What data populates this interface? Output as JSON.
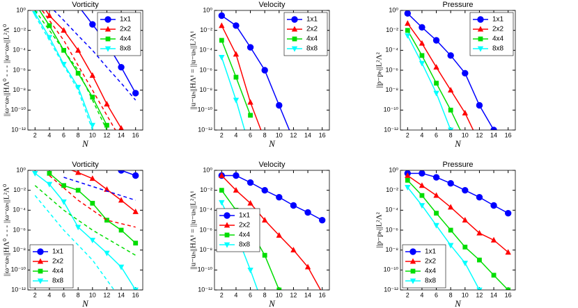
{
  "chart_data": [
    {
      "type": "line",
      "title": "Vorticity",
      "xlabel": "N",
      "ylabel": "||ω−ωₕ||HΛ⁰   - - -   ||ω−ωₕ||L²Λ⁰",
      "log_y": true,
      "legend": "upper right",
      "xlim": [
        1,
        17
      ],
      "xticks": [
        2,
        4,
        6,
        8,
        10,
        12,
        14,
        16
      ],
      "ylim": [
        1e-12,
        1
      ],
      "yticks": [
        {
          "value": 1e-12,
          "label": "10⁻¹²"
        },
        {
          "value": 1e-10,
          "label": "10⁻¹⁰"
        },
        {
          "value": 1e-08,
          "label": "10⁻⁸"
        },
        {
          "value": 1e-06,
          "label": "10⁻⁶"
        },
        {
          "value": 0.0001,
          "label": "10⁻⁴"
        },
        {
          "value": 0.01,
          "label": "10⁻²"
        },
        {
          "value": 1,
          "label": "10⁰"
        }
      ],
      "series": [
        {
          "name": "1x1",
          "color": "#0000ff",
          "marker": "o",
          "x": [
            8,
            10,
            12,
            14,
            16
          ],
          "values": [
            3,
            0.04,
            0.0005,
            2e-06,
            5e-09
          ]
        },
        {
          "name": "2x2",
          "color": "#ff0000",
          "marker": "^",
          "x": [
            2,
            4,
            6,
            8,
            10,
            12,
            14
          ],
          "values": [
            50,
            0.3,
            0.01,
            0.0001,
            3e-07,
            4e-10,
            1.5e-12
          ]
        },
        {
          "name": "4x4",
          "color": "#00dd00",
          "marker": "s",
          "x": [
            2,
            4,
            6,
            8,
            10,
            12
          ],
          "values": [
            5,
            0.03,
            0.0001,
            5e-07,
            2e-09,
            3e-12
          ]
        },
        {
          "name": "8x8",
          "color": "#00ffff",
          "marker": "v",
          "x": [
            2,
            4,
            6,
            8,
            10
          ],
          "values": [
            0.5,
            0.002,
            4e-06,
            2e-08,
            3e-12
          ]
        },
        {
          "color": "#0000ff",
          "dashed": true,
          "x": [
            4,
            6,
            8,
            10,
            12,
            14,
            16
          ],
          "values": [
            3,
            0.1,
            0.003,
            0.0001,
            2e-06,
            5e-08,
            1e-09
          ]
        },
        {
          "color": "#ff0000",
          "dashed": true,
          "x": [
            2,
            4,
            6,
            8,
            10,
            12,
            14
          ],
          "values": [
            10,
            0.1,
            0.001,
            3e-06,
            1e-08,
            3e-11,
            1e-13
          ]
        },
        {
          "color": "#00dd00",
          "dashed": true,
          "x": [
            2,
            4,
            6,
            8,
            10,
            12
          ],
          "values": [
            1,
            0.01,
            0.0001,
            1e-06,
            1e-09,
            1e-12
          ]
        },
        {
          "color": "#00ffff",
          "dashed": true,
          "x": [
            2,
            4,
            6,
            8,
            10
          ],
          "values": [
            0.3,
            0.001,
            3e-06,
            1e-08,
            1e-12
          ]
        }
      ]
    },
    {
      "type": "line",
      "title": "Velocity",
      "xlabel": "N",
      "ylabel": "||u−uₕ||HΛ¹ = ||u−uₕ||L²Λ¹",
      "log_y": true,
      "legend": "upper right",
      "xlim": [
        1,
        17
      ],
      "xticks": [
        2,
        4,
        6,
        8,
        10,
        12,
        14,
        16
      ],
      "ylim": [
        1e-12,
        1
      ],
      "yticks": [
        {
          "value": 1e-12,
          "label": "10⁻¹²"
        },
        {
          "value": 1e-10,
          "label": "10⁻¹⁰"
        },
        {
          "value": 1e-08,
          "label": "10⁻⁸"
        },
        {
          "value": 1e-06,
          "label": "10⁻⁶"
        },
        {
          "value": 0.0001,
          "label": "10⁻⁴"
        },
        {
          "value": 0.01,
          "label": "10⁻²"
        },
        {
          "value": 1,
          "label": "10⁰"
        }
      ],
      "series": [
        {
          "name": "1x1",
          "color": "#0000ff",
          "marker": "o",
          "x": [
            2,
            4,
            6,
            8,
            10,
            12
          ],
          "values": [
            0.3,
            0.03,
            0.0002,
            1e-06,
            3e-10,
            1e-13
          ]
        },
        {
          "name": "2x2",
          "color": "#ff0000",
          "marker": "^",
          "x": [
            2,
            4,
            6,
            8
          ],
          "values": [
            0.03,
            4e-05,
            6e-10,
            1e-13
          ]
        },
        {
          "name": "4x4",
          "color": "#00dd00",
          "marker": "s",
          "x": [
            2,
            4,
            6
          ],
          "values": [
            0.001,
            2e-07,
            3e-11
          ]
        },
        {
          "name": "8x8",
          "color": "#00ffff",
          "marker": "v",
          "x": [
            2,
            4,
            6
          ],
          "values": [
            2e-05,
            1e-09,
            1e-14
          ]
        }
      ]
    },
    {
      "type": "line",
      "title": "Pressure",
      "xlabel": "N",
      "ylabel": "||p−pₕ||L²Λ²",
      "log_y": true,
      "legend": "upper right",
      "xlim": [
        1,
        17
      ],
      "xticks": [
        2,
        4,
        6,
        8,
        10,
        12,
        14,
        16
      ],
      "ylim": [
        1e-12,
        1
      ],
      "yticks": [
        {
          "value": 1e-12,
          "label": "10⁻¹²"
        },
        {
          "value": 1e-10,
          "label": "10⁻¹⁰"
        },
        {
          "value": 1e-08,
          "label": "10⁻⁸"
        },
        {
          "value": 1e-06,
          "label": "10⁻⁶"
        },
        {
          "value": 0.0001,
          "label": "10⁻⁴"
        },
        {
          "value": 0.01,
          "label": "10⁻²"
        },
        {
          "value": 1,
          "label": "10⁰"
        }
      ],
      "series": [
        {
          "name": "1x1",
          "color": "#0000ff",
          "marker": "o",
          "x": [
            2,
            4,
            6,
            8,
            10,
            12,
            14
          ],
          "values": [
            0.5,
            0.02,
            0.001,
            3e-05,
            5e-07,
            3e-10,
            1e-12
          ]
        },
        {
          "name": "2x2",
          "color": "#ff0000",
          "marker": "^",
          "x": [
            2,
            4,
            6,
            8,
            10,
            12
          ],
          "values": [
            0.05,
            0.0005,
            2e-06,
            1e-08,
            5e-11,
            5e-14
          ]
        },
        {
          "name": "4x4",
          "color": "#00dd00",
          "marker": "s",
          "x": [
            2,
            4,
            6,
            8,
            10
          ],
          "values": [
            0.01,
            3e-05,
            5e-08,
            1e-10,
            1e-13
          ]
        },
        {
          "name": "8x8",
          "color": "#00ffff",
          "marker": "v",
          "x": [
            2,
            4,
            6,
            8
          ],
          "values": [
            0.003,
            5e-06,
            5e-09,
            1e-12
          ]
        }
      ]
    },
    {
      "type": "line",
      "title": "Vorticity",
      "xlabel": "N",
      "ylabel": "||ω−ωₕ||HΛ⁰   - - -   ||ω−ωₕ||L²Λ⁰",
      "log_y": true,
      "legend": "lower left",
      "xlim": [
        1,
        17
      ],
      "xticks": [
        2,
        4,
        6,
        8,
        10,
        12,
        14,
        16
      ],
      "ylim": [
        1e-12,
        1
      ],
      "yticks": [
        {
          "value": 1e-12,
          "label": "10⁻¹²"
        },
        {
          "value": 1e-10,
          "label": "10⁻¹⁰"
        },
        {
          "value": 1e-08,
          "label": "10⁻⁸"
        },
        {
          "value": 1e-06,
          "label": "10⁻⁶"
        },
        {
          "value": 0.0001,
          "label": "10⁻⁴"
        },
        {
          "value": 0.01,
          "label": "10⁻²"
        },
        {
          "value": 1,
          "label": "10⁰"
        }
      ],
      "series": [
        {
          "name": "1x1",
          "color": "#0000ff",
          "marker": "o",
          "x": [
            12,
            14,
            16
          ],
          "values": [
            3,
            1,
            0.3
          ]
        },
        {
          "name": "2x2",
          "color": "#ff0000",
          "marker": "^",
          "x": [
            6,
            8,
            10,
            12,
            14,
            16
          ],
          "values": [
            2,
            0.6,
            0.15,
            0.012,
            0.001,
            7e-05
          ]
        },
        {
          "name": "4x4",
          "color": "#00dd00",
          "marker": "s",
          "x": [
            4,
            6,
            8,
            10,
            12,
            14,
            16
          ],
          "values": [
            0.5,
            0.03,
            0.01,
            0.0005,
            1e-05,
            1e-06,
            5e-08
          ]
        },
        {
          "name": "8x8",
          "color": "#00ffff",
          "marker": "v",
          "x": [
            2,
            4,
            6,
            8,
            10,
            12,
            14,
            16
          ],
          "values": [
            0.5,
            0.04,
            0.0007,
            2e-06,
            1e-07,
            5e-09,
            2e-10,
            1e-12
          ]
        },
        {
          "color": "#0000ff",
          "dashed": true,
          "x": [
            6,
            16
          ],
          "values": [
            0.2,
            0.001
          ]
        },
        {
          "color": "#ff0000",
          "dashed": true,
          "x": [
            4,
            8,
            12,
            16
          ],
          "values": [
            0.3,
            0.001,
            1e-05,
            2e-06
          ]
        },
        {
          "color": "#00dd00",
          "dashed": true,
          "x": [
            2,
            6,
            10,
            16
          ],
          "values": [
            0.03,
            0.0001,
            1e-06,
            3e-09
          ]
        },
        {
          "color": "#00ffff",
          "dashed": true,
          "x": [
            2,
            6,
            10,
            13
          ],
          "values": [
            0.003,
            1e-06,
            1e-09,
            1e-12
          ]
        }
      ]
    },
    {
      "type": "line",
      "title": "Velocity",
      "xlabel": "N",
      "ylabel": "||u−uₕ||HΛ¹ = ||u−uₕ||L²Λ¹",
      "log_y": true,
      "legend": "center left",
      "xlim": [
        1,
        17
      ],
      "xticks": [
        2,
        4,
        6,
        8,
        10,
        12,
        14,
        16
      ],
      "ylim": [
        1e-12,
        1
      ],
      "yticks": [
        {
          "value": 1e-12,
          "label": "10⁻¹²"
        },
        {
          "value": 1e-10,
          "label": "10⁻¹⁰"
        },
        {
          "value": 1e-08,
          "label": "10⁻⁸"
        },
        {
          "value": 1e-06,
          "label": "10⁻⁶"
        },
        {
          "value": 0.0001,
          "label": "10⁻⁴"
        },
        {
          "value": 0.01,
          "label": "10⁻²"
        },
        {
          "value": 1,
          "label": "10⁰"
        }
      ],
      "series": [
        {
          "name": "1x1",
          "color": "#0000ff",
          "marker": "o",
          "x": [
            2,
            4,
            6,
            8,
            10,
            12,
            14,
            16
          ],
          "values": [
            0.3,
            0.3,
            0.06,
            0.01,
            0.002,
            0.0003,
            6e-05,
            1e-05
          ]
        },
        {
          "name": "2x2",
          "color": "#ff0000",
          "marker": "^",
          "x": [
            2,
            4,
            6,
            8,
            10,
            12,
            14,
            16
          ],
          "values": [
            0.3,
            0.01,
            0.0005,
            1e-05,
            3e-07,
            1e-08,
            2e-10,
            5e-13
          ]
        },
        {
          "name": "4x4",
          "color": "#00dd00",
          "marker": "s",
          "x": [
            2,
            4,
            6,
            8,
            10
          ],
          "values": [
            0.01,
            0.0001,
            1e-06,
            3e-09,
            1e-12
          ]
        },
        {
          "name": "8x8",
          "color": "#00ffff",
          "marker": "v",
          "x": [
            2,
            4,
            6,
            8
          ],
          "values": [
            0.0006,
            5e-07,
            1e-10,
            1e-14
          ]
        }
      ]
    },
    {
      "type": "line",
      "title": "Pressure",
      "xlabel": "N",
      "ylabel": "||p−pₕ||L²Λ²",
      "log_y": true,
      "legend": "lower left",
      "xlim": [
        1,
        17
      ],
      "xticks": [
        2,
        4,
        6,
        8,
        10,
        12,
        14,
        16
      ],
      "ylim": [
        1e-12,
        1
      ],
      "yticks": [
        {
          "value": 1e-12,
          "label": "10⁻¹²"
        },
        {
          "value": 1e-10,
          "label": "10⁻¹⁰"
        },
        {
          "value": 1e-08,
          "label": "10⁻⁸"
        },
        {
          "value": 1e-06,
          "label": "10⁻⁶"
        },
        {
          "value": 0.0001,
          "label": "10⁻⁴"
        },
        {
          "value": 0.01,
          "label": "10⁻²"
        },
        {
          "value": 1,
          "label": "10⁰"
        }
      ],
      "series": [
        {
          "name": "1x1",
          "color": "#0000ff",
          "marker": "o",
          "x": [
            2,
            4,
            6,
            8,
            10,
            12,
            14,
            16
          ],
          "values": [
            0.5,
            0.5,
            0.2,
            0.05,
            0.01,
            0.002,
            0.0003,
            5e-05
          ]
        },
        {
          "name": "2x2",
          "color": "#ff0000",
          "marker": "^",
          "x": [
            2,
            4,
            6,
            8,
            10,
            12,
            14,
            16
          ],
          "values": [
            0.3,
            0.03,
            0.003,
            0.0002,
            1e-05,
            5e-07,
            1e-07,
            6e-09
          ]
        },
        {
          "name": "4x4",
          "color": "#00dd00",
          "marker": "s",
          "x": [
            2,
            4,
            6,
            8,
            10,
            12,
            14,
            16
          ],
          "values": [
            0.1,
            0.003,
            5e-05,
            1e-06,
            2e-08,
            1e-09,
            3e-11,
            1e-12
          ]
        },
        {
          "name": "8x8",
          "color": "#00ffff",
          "marker": "v",
          "x": [
            2,
            4,
            6,
            8,
            10,
            12
          ],
          "values": [
            0.02,
            0.0003,
            3e-06,
            3e-08,
            5e-10,
            1e-12
          ]
        }
      ]
    }
  ]
}
